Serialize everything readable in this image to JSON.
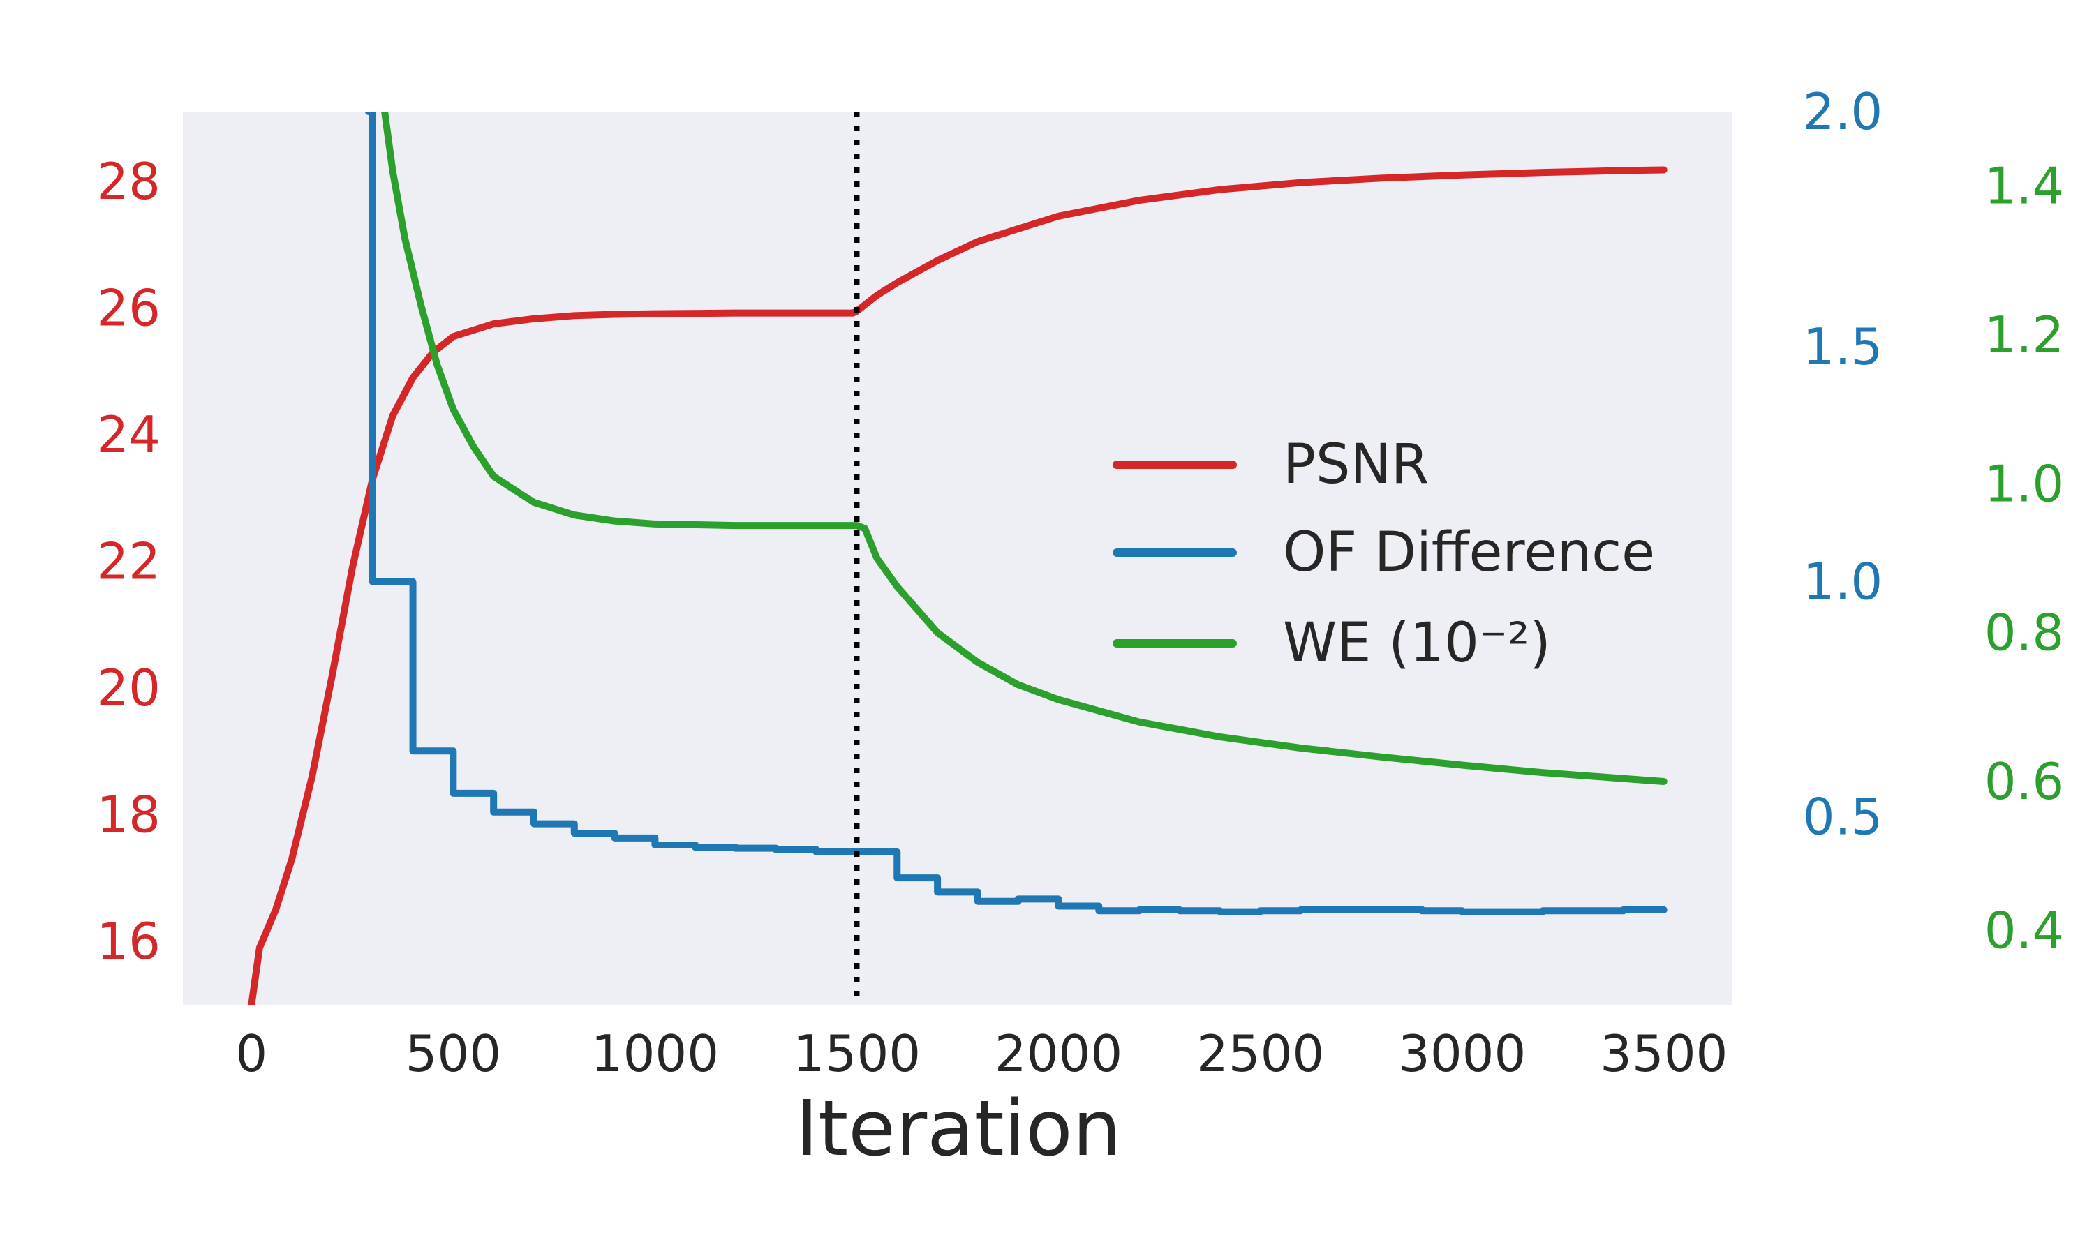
{
  "chart_data": {
    "type": "line",
    "xlabel": "Iteration",
    "x_ticks": [
      "0",
      "500",
      "1000",
      "1500",
      "2000",
      "2500",
      "3000",
      "3500"
    ],
    "xlim": [
      -170,
      3670
    ],
    "vline": {
      "x": 1500,
      "style": "dotted",
      "color": "#000000"
    },
    "axes": {
      "left": {
        "color": "#d62728",
        "ylim": [
          15.0,
          29.1
        ],
        "ticks": [
          "16",
          "18",
          "20",
          "22",
          "24",
          "26",
          "28"
        ]
      },
      "right1": {
        "color": "#1f77b4",
        "ylim": [
          0.1,
          2.0
        ],
        "ticks": [
          "0.5",
          "1.0",
          "1.5",
          "2.0"
        ]
      },
      "right2": {
        "color": "#2ca02c",
        "ylim": [
          0.3,
          1.5
        ],
        "ticks": [
          "0.4",
          "0.6",
          "0.8",
          "1.0",
          "1.2",
          "1.4"
        ]
      }
    },
    "series": [
      {
        "name": "PSNR",
        "axis": "left",
        "color": "#d62728",
        "step": false,
        "x": [
          0,
          20,
          60,
          100,
          150,
          200,
          250,
          300,
          350,
          400,
          450,
          500,
          600,
          700,
          800,
          900,
          1000,
          1200,
          1400,
          1490,
          1500,
          1550,
          1600,
          1700,
          1800,
          2000,
          2200,
          2400,
          2600,
          2800,
          3000,
          3200,
          3400,
          3500
        ],
        "y": [
          15.0,
          15.9,
          16.5,
          17.3,
          18.6,
          20.2,
          21.9,
          23.3,
          24.3,
          24.9,
          25.3,
          25.55,
          25.75,
          25.83,
          25.88,
          25.9,
          25.91,
          25.92,
          25.92,
          25.92,
          25.95,
          26.2,
          26.4,
          26.75,
          27.05,
          27.45,
          27.7,
          27.87,
          27.98,
          28.05,
          28.1,
          28.14,
          28.17,
          28.18
        ]
      },
      {
        "name": "OF Difference",
        "axis": "right1",
        "color": "#1f77b4",
        "step": true,
        "x": [
          290,
          290,
          300,
          400,
          500,
          600,
          700,
          800,
          900,
          1000,
          1100,
          1200,
          1300,
          1400,
          1500,
          1600,
          1700,
          1800,
          1900,
          2000,
          2100,
          2200,
          2300,
          2400,
          2500,
          2600,
          2700,
          2800,
          2900,
          3000,
          3100,
          3200,
          3300,
          3400,
          3500
        ],
        "y": [
          2.0,
          2.0,
          1.0,
          0.64,
          0.55,
          0.51,
          0.485,
          0.465,
          0.455,
          0.44,
          0.435,
          0.433,
          0.43,
          0.425,
          0.425,
          0.37,
          0.34,
          0.32,
          0.325,
          0.31,
          0.3,
          0.302,
          0.3,
          0.298,
          0.3,
          0.302,
          0.303,
          0.303,
          0.3,
          0.298,
          0.298,
          0.3,
          0.3,
          0.302,
          0.302
        ]
      },
      {
        "name": "WE (10⁻²)",
        "axis": "right2",
        "color": "#2ca02c",
        "step": false,
        "x": [
          330,
          350,
          380,
          420,
          460,
          500,
          550,
          600,
          700,
          800,
          900,
          1000,
          1200,
          1400,
          1490,
          1500,
          1520,
          1550,
          1600,
          1700,
          1800,
          1900,
          2000,
          2200,
          2400,
          2600,
          2800,
          3000,
          3200,
          3400,
          3500
        ],
        "y": [
          1.5,
          1.42,
          1.33,
          1.24,
          1.16,
          1.1,
          1.05,
          1.01,
          0.975,
          0.958,
          0.95,
          0.946,
          0.944,
          0.944,
          0.944,
          0.944,
          0.94,
          0.9,
          0.862,
          0.8,
          0.76,
          0.73,
          0.71,
          0.68,
          0.66,
          0.645,
          0.633,
          0.622,
          0.612,
          0.604,
          0.6
        ]
      }
    ]
  }
}
